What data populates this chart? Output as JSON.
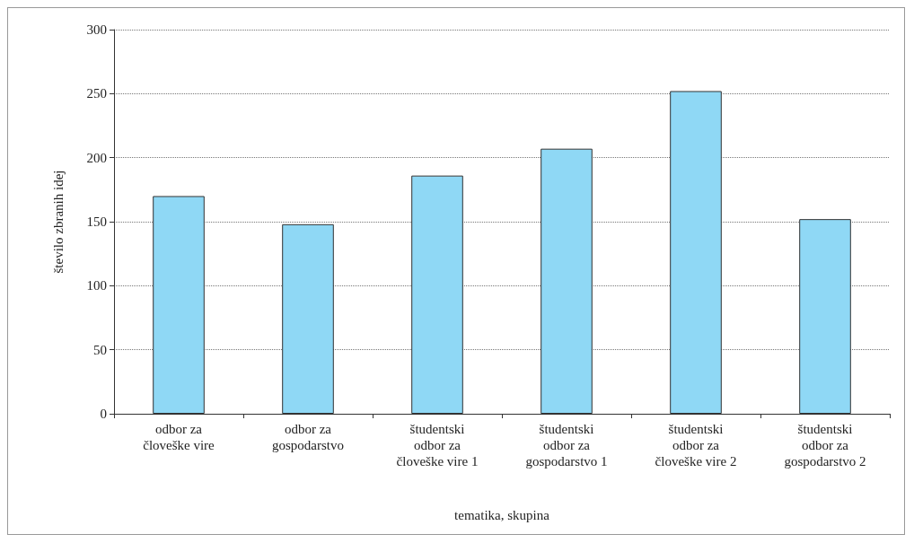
{
  "chart_data": {
    "type": "bar",
    "xlabel": "tematika, skupina",
    "ylabel": "število zbranih idej",
    "categories": [
      "odbor za\nčloveške vire",
      "odbor za\ngospodarstvo",
      "študentski\nodbor za\nčloveške vire 1",
      "študentski\nodbor za\ngospodarstvo 1",
      "študentski\nodbor za\nčloveške vire 2",
      "študentski\nodbor za\ngospodarstvo 2"
    ],
    "values": [
      170,
      148,
      186,
      207,
      252,
      152
    ],
    "color": "#8fd8f5",
    "ylim": [
      0,
      300
    ],
    "yticks": [
      0,
      50,
      100,
      150,
      200,
      250,
      300
    ],
    "grid": "y"
  }
}
